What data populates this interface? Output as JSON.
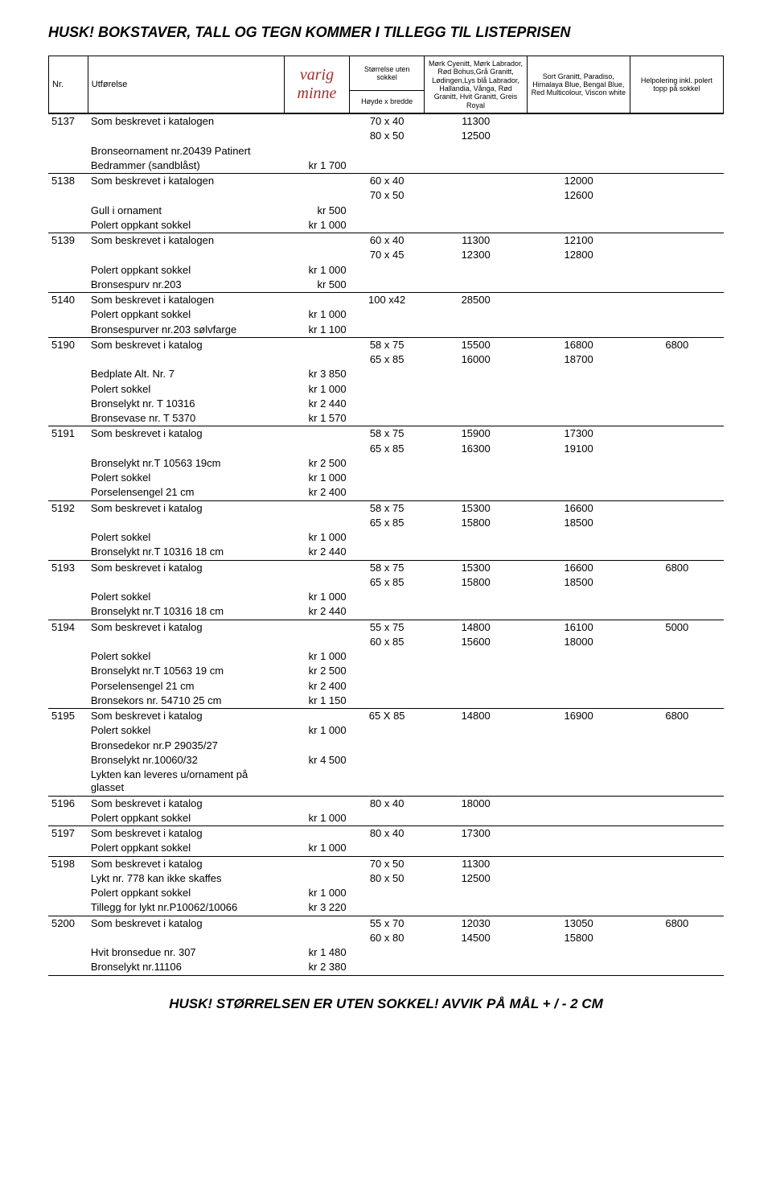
{
  "topTitle": "HUSK! BOKSTAVER, TALL OG TEGN KOMMER I TILLEGG TIL LISTEPRISEN",
  "bottomTitle": "HUSK! STØRRELSEN ER UTEN SOKKEL! AVVIK PÅ MÅL + / - 2 CM",
  "brand": "varig minne",
  "header": {
    "nr": "Nr.",
    "utforelse": "Utførelse",
    "sizeTop": "Størrelse uten sokkel",
    "sizeBottom": "Høyde x bredde",
    "col1": "Mørk Cyenitt, Mørk Labrador, Rød Bohus,Grå Granitt, Lødingen,Lys blå Labrador, Hallandia, Vånga, Rød Granitt, Hvit Granitt, Greis Royal",
    "col2": "Sort Granitt, Paradiso, Himalaya Blue, Bengal Blue, Red Multicolour, Viscon white",
    "col3": "Helpolering inkl. polert topp på sokkel"
  },
  "rows": [
    {
      "nr": "5137",
      "lines": [
        {
          "utf": "Som beskrevet i katalogen",
          "size": "70 x 40",
          "p1": "11300"
        },
        {
          "size": "80 x 50",
          "p1": "12500"
        },
        {
          "utf": "Bronseornament nr.20439 Patinert"
        },
        {
          "utf": "Bedrammer (sandblåst)",
          "pr": "kr 1 700"
        }
      ]
    },
    {
      "nr": "5138",
      "lines": [
        {
          "utf": "Som beskrevet i katalogen",
          "size": "60 x 40",
          "p2": "12000"
        },
        {
          "size": "70 x 50",
          "p2": "12600"
        },
        {
          "utf": "Gull i ornament",
          "pr": "kr 500"
        },
        {
          "utf": "Polert oppkant sokkel",
          "pr": "kr 1 000"
        }
      ]
    },
    {
      "nr": "5139",
      "lines": [
        {
          "utf": "Som beskrevet i katalogen",
          "size": "60 x 40",
          "p1": "11300",
          "p2": "12100"
        },
        {
          "size": "70 x 45",
          "p1": "12300",
          "p2": "12800"
        },
        {
          "utf": "Polert oppkant sokkel",
          "pr": "kr 1 000"
        },
        {
          "utf": "Bronsespurv nr.203",
          "pr": "kr 500"
        }
      ]
    },
    {
      "nr": "5140",
      "lines": [
        {
          "utf": "Som beskrevet i katalogen",
          "size": "100 x42",
          "p1": "28500"
        },
        {
          "utf": "Polert oppkant sokkel",
          "pr": "kr 1 000"
        },
        {
          "utf": "Bronsespurver nr.203 sølvfarge",
          "pr": "kr 1 100"
        }
      ]
    },
    {
      "nr": "5190",
      "lines": [
        {
          "utf": "Som beskrevet i katalog",
          "size": "58 x 75",
          "p1": "15500",
          "p2": "16800",
          "p3": "6800"
        },
        {
          "size": "65 x 85",
          "p1": "16000",
          "p2": "18700"
        },
        {
          "utf": "Bedplate Alt. Nr. 7",
          "pr": "kr 3 850"
        },
        {
          "utf": "Polert sokkel",
          "pr": "kr 1 000"
        },
        {
          "utf": "Bronselykt nr. T 10316",
          "pr": "kr 2 440"
        },
        {
          "utf": "Bronsevase nr. T 5370",
          "pr": "kr 1 570"
        }
      ]
    },
    {
      "nr": "5191",
      "lines": [
        {
          "utf": "Som beskrevet i katalog",
          "size": "58 x 75",
          "p1": "15900",
          "p2": "17300"
        },
        {
          "size": "65 x 85",
          "p1": "16300",
          "p2": "19100"
        },
        {
          "utf": "Bronselykt nr.T 10563 19cm",
          "pr": "kr 2 500"
        },
        {
          "utf": "Polert sokkel",
          "pr": "kr 1 000"
        },
        {
          "utf": "Porselensengel 21 cm",
          "pr": "kr 2 400"
        }
      ]
    },
    {
      "nr": "5192",
      "lines": [
        {
          "utf": "Som beskrevet i katalog",
          "size": "58 x 75",
          "p1": "15300",
          "p2": "16600"
        },
        {
          "size": "65 x 85",
          "p1": "15800",
          "p2": "18500"
        },
        {
          "utf": "Polert sokkel",
          "pr": "kr 1 000"
        },
        {
          "utf": "Bronselykt nr.T 10316 18 cm",
          "pr": "kr 2 440"
        }
      ]
    },
    {
      "nr": "5193",
      "lines": [
        {
          "utf": "Som beskrevet i katalog",
          "size": "58 x 75",
          "p1": "15300",
          "p2": "16600",
          "p3": "6800"
        },
        {
          "size": "65 x 85",
          "p1": "15800",
          "p2": "18500"
        },
        {
          "utf": "Polert sokkel",
          "pr": "kr 1 000"
        },
        {
          "utf": "Bronselykt nr.T 10316 18 cm",
          "pr": "kr 2 440"
        }
      ]
    },
    {
      "nr": "5194",
      "lines": [
        {
          "utf": "Som beskrevet i katalog",
          "size": "55 x 75",
          "p1": "14800",
          "p2": "16100",
          "p3": "5000"
        },
        {
          "size": "60 x 85",
          "p1": "15600",
          "p2": "18000"
        },
        {
          "utf": "Polert sokkel",
          "pr": "kr 1 000"
        },
        {
          "utf": "Bronselykt nr.T 10563 19 cm",
          "pr": "kr 2 500"
        },
        {
          "utf": "Porselensengel 21 cm",
          "pr": "kr 2 400"
        },
        {
          "utf": "Bronsekors nr. 54710 25 cm",
          "pr": "kr 1 150"
        }
      ]
    },
    {
      "nr": "5195",
      "lines": [
        {
          "utf": "Som beskrevet i katalog",
          "size": "65 X 85",
          "p1": "14800",
          "p2": "16900",
          "p3": "6800"
        },
        {
          "utf": "Polert sokkel",
          "pr": "kr 1 000"
        },
        {
          "utf": "Bronsedekor nr.P 29035/27"
        },
        {
          "utf": "Bronselykt nr.10060/32",
          "pr": "kr 4 500"
        },
        {
          "utf": "Lykten kan leveres u/ornament på glasset"
        }
      ]
    },
    {
      "nr": "5196",
      "lines": [
        {
          "utf": "Som beskrevet i katalog",
          "size": "80 x 40",
          "p1": "18000"
        },
        {
          "utf": "Polert oppkant sokkel",
          "pr": "kr 1 000"
        }
      ]
    },
    {
      "nr": "5197",
      "lines": [
        {
          "utf": "Som beskrevet i katalog",
          "size": "80 x 40",
          "p1": "17300"
        },
        {
          "utf": "Polert oppkant sokkel",
          "pr": "kr 1 000"
        }
      ]
    },
    {
      "nr": "5198",
      "lines": [
        {
          "utf": "Som beskrevet i katalog",
          "size": "70 x 50",
          "p1": "11300"
        },
        {
          "utf": "Lykt nr. 778 kan ikke skaffes",
          "size": "80 x 50",
          "p1": "12500"
        },
        {
          "utf": "Polert oppkant sokkel",
          "pr": "kr 1 000"
        },
        {
          "utf": "Tillegg for lykt nr.P10062/10066",
          "pr": "kr 3 220"
        }
      ]
    },
    {
      "nr": "5200",
      "lines": [
        {
          "utf": "Som beskrevet i katalog",
          "size": "55 x 70",
          "p1": "12030",
          "p2": "13050",
          "p3": "6800"
        },
        {
          "size": "60 x 80",
          "p1": "14500",
          "p2": "15800"
        },
        {
          "utf": "Hvit bronsedue nr. 307",
          "pr": "kr 1 480"
        },
        {
          "utf": "Bronselykt nr.11106",
          "pr": "kr 2 380"
        }
      ]
    }
  ]
}
